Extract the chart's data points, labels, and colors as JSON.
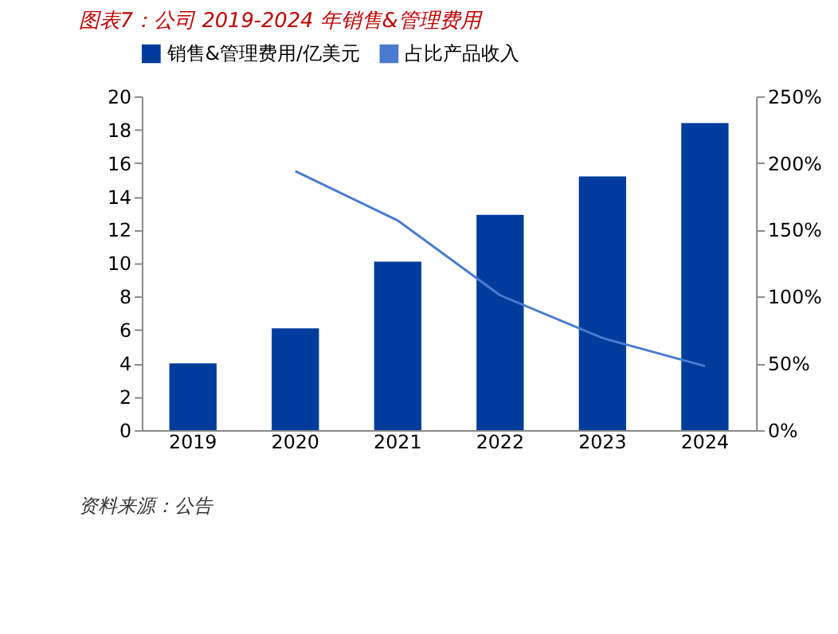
{
  "chart_data": {
    "type": "bar",
    "title": "图表7：公司 2019-2024 年销售&管理费用",
    "categories": [
      "2019",
      "2020",
      "2021",
      "2022",
      "2023",
      "2024"
    ],
    "series": [
      {
        "name": "销售&管理费用/亿美元",
        "color": "#003c9b",
        "values": [
          4.0,
          6.1,
          10.1,
          12.9,
          15.2,
          18.4
        ]
      },
      {
        "name": "占比产品收入",
        "type": "line",
        "axis": "y2",
        "color": "#4a7bd0",
        "values": [
          null,
          194,
          157,
          101,
          69,
          48
        ]
      }
    ],
    "ylim": [
      0,
      20
    ],
    "yticks": [
      0,
      2,
      4,
      6,
      8,
      10,
      12,
      14,
      16,
      18,
      20
    ],
    "y2lim": [
      0,
      250
    ],
    "y2ticks": [
      {
        "value": 0,
        "label": "0%"
      },
      {
        "value": 50,
        "label": "50%"
      },
      {
        "value": 100,
        "label": "100%"
      },
      {
        "value": 150,
        "label": "150%"
      },
      {
        "value": 200,
        "label": "200%"
      },
      {
        "value": 250,
        "label": "250%"
      }
    ],
    "grid": false,
    "legend": "top",
    "marker": "none",
    "line_style": "solid",
    "annotations": [
      "资料来源：公告"
    ]
  }
}
